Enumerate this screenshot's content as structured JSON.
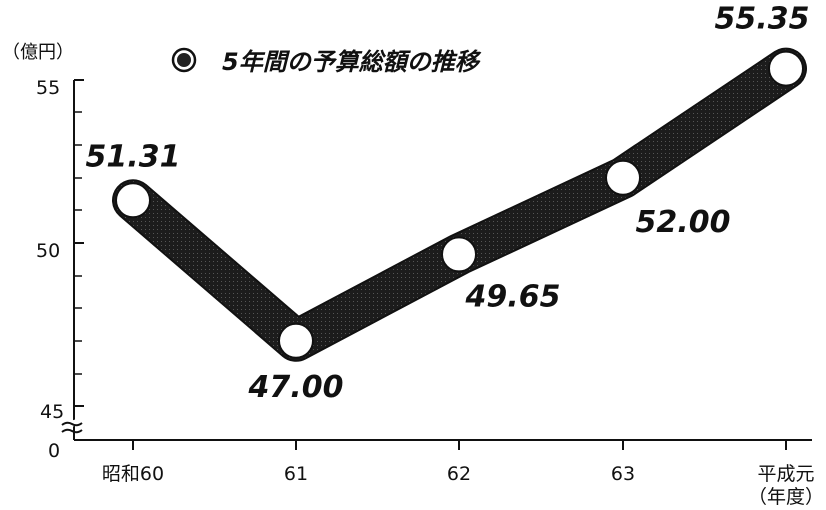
{
  "chart_data": {
    "type": "line",
    "title": "5年間の予算総額の推移",
    "ylabel": "（億円）",
    "xlabel_line1": "平成元",
    "xlabel_unit": "（年度）",
    "categories": [
      "昭和60",
      "61",
      "62",
      "63",
      "平成元"
    ],
    "values": [
      51.31,
      47.0,
      49.65,
      52.0,
      55.35
    ],
    "data_labels": [
      "51.31",
      "47.00",
      "49.65",
      "52.00",
      "55.35"
    ],
    "yticks": [
      "55",
      "50",
      "45",
      "0"
    ],
    "ylim": [
      45,
      55
    ],
    "axis_break": true,
    "grid": false,
    "colors": {
      "band": "#1a1a1a",
      "marker": "#ffffff",
      "axis": "#111111"
    }
  }
}
